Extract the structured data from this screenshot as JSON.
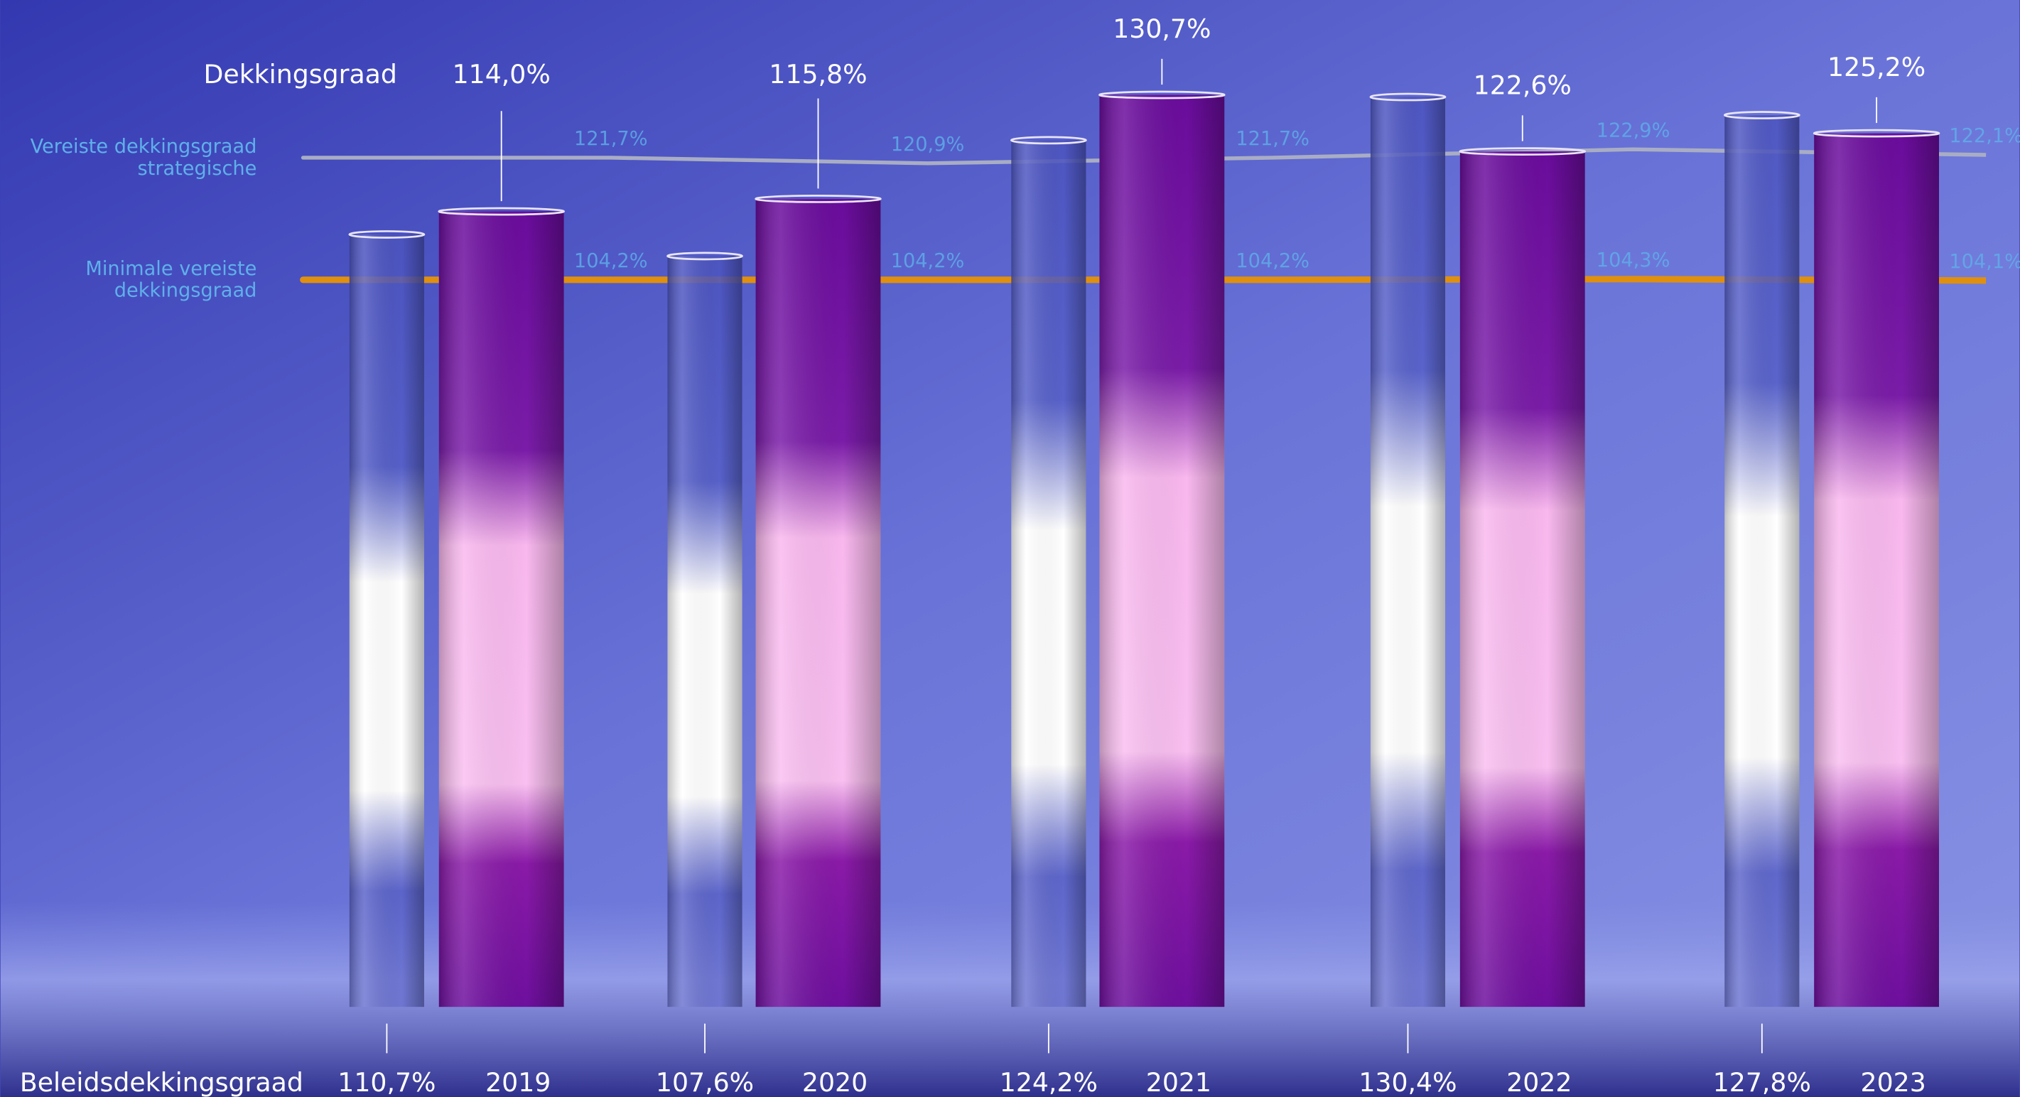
{
  "chart_data": {
    "type": "bar",
    "categories": [
      "2019",
      "2020",
      "2021",
      "2022",
      "2023"
    ],
    "series": [
      {
        "name": "Dekkingsgraad",
        "color": "#7a1aa8",
        "values": [
          114.0,
          115.8,
          130.7,
          122.6,
          125.2
        ],
        "value_labels": [
          "114,0%",
          "115,8%",
          "130,7%",
          "122,6%",
          "125,2%"
        ]
      },
      {
        "name": "Beleidsdekkingsgraad",
        "color": "#4e56c4",
        "values": [
          110.7,
          107.6,
          124.2,
          130.4,
          127.8
        ],
        "value_labels": [
          "110,7%",
          "107,6%",
          "124,2%",
          "130,4%",
          "127,8%"
        ]
      },
      {
        "name": [
          "Vereiste dekkingsgraad",
          "strategische"
        ],
        "type": "line",
        "color": "#a9adc4",
        "values": [
          121.7,
          120.9,
          121.7,
          122.9,
          122.1
        ],
        "value_labels": [
          "121,7%",
          "120,9%",
          "121,7%",
          "122,9%",
          "122,1%"
        ]
      },
      {
        "name": [
          "Minimale vereiste",
          "dekkingsgraad"
        ],
        "type": "line",
        "color": "#e0900f",
        "values": [
          104.2,
          104.2,
          104.2,
          104.3,
          104.1
        ],
        "value_labels": [
          "104,2%",
          "104,2%",
          "104,2%",
          "104,3%",
          "104,1%"
        ]
      }
    ],
    "ylim": [
      0,
      144.3
    ]
  }
}
